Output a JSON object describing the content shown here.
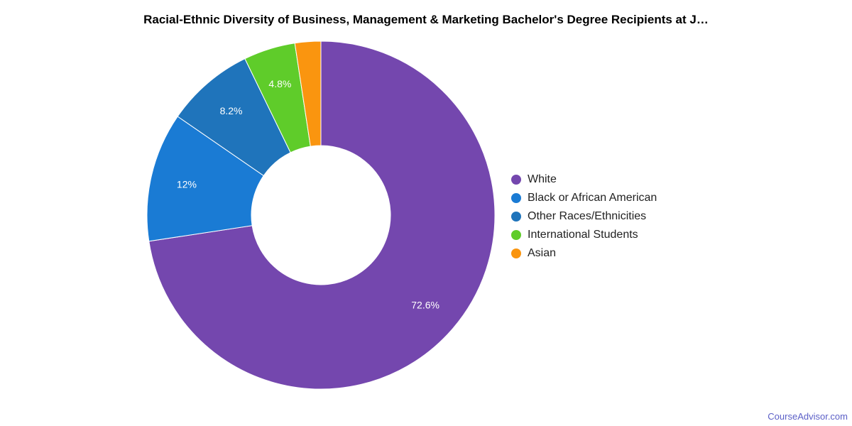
{
  "title": "Racial-Ethnic Diversity of Business, Management & Marketing Bachelor's Degree Recipients at J…",
  "chart_data": {
    "type": "pie",
    "title": "Racial-Ethnic Diversity of Business, Management & Marketing Bachelor's Degree Recipients at J…",
    "donut": true,
    "legend_position": "right",
    "slices": [
      {
        "label": "White",
        "value": 72.6,
        "value_label": "72.6%",
        "color": "#7447ae"
      },
      {
        "label": "Black or African American",
        "value": 12.0,
        "value_label": "12%",
        "color": "#1a7bd4"
      },
      {
        "label": "Other Races/Ethnicities",
        "value": 8.2,
        "value_label": "8.2%",
        "color": "#1f74bb"
      },
      {
        "label": "International Students",
        "value": 4.8,
        "value_label": "4.8%",
        "color": "#5fcc2a"
      },
      {
        "label": "Asian",
        "value": 2.4,
        "value_label": "",
        "color": "#fa950f"
      }
    ]
  },
  "source": "CourseAdvisor.com"
}
